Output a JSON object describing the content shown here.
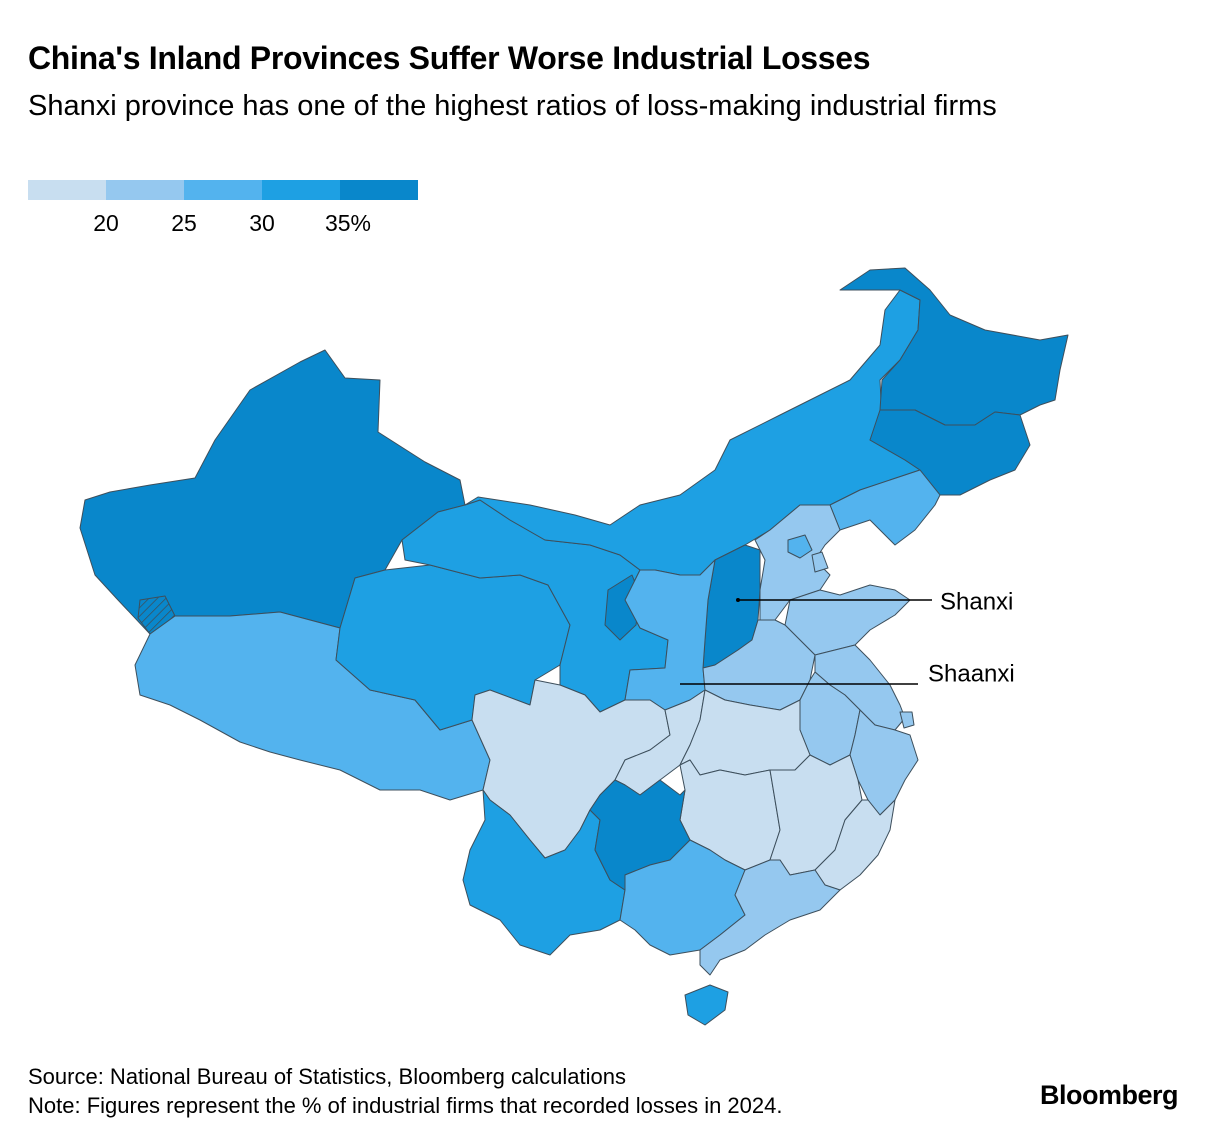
{
  "title": "China's Inland Provinces Suffer Worse Industrial Losses",
  "subtitle": "Shanxi province has one of the highest ratios of loss-making industrial firms",
  "legend": {
    "colors": [
      "#c8def0",
      "#95c8ef",
      "#53b3ee",
      "#1ea0e3",
      "#0987cb"
    ],
    "ticks": [
      "20",
      "25",
      "30",
      "35%"
    ]
  },
  "annotations": [
    {
      "name": "Shanxi",
      "text": "Shanxi"
    },
    {
      "name": "Shaanxi",
      "text": "Shaanxi"
    }
  ],
  "footer": {
    "source": "Source: National Bureau of Statistics, Bloomberg calculations",
    "note": "Note: Figures represent the % of industrial firms that recorded losses in 2024."
  },
  "brand": "Bloomberg",
  "colors": {
    "border": "#3d4f5c",
    "leader_line": "#000000"
  },
  "chart_data": {
    "type": "choropleth",
    "unit": "%",
    "legend_bins": [
      [
        null,
        20
      ],
      [
        20,
        25
      ],
      [
        25,
        30
      ],
      [
        30,
        35
      ],
      [
        35,
        null
      ]
    ],
    "regions": [
      {
        "name": "Xinjiang",
        "bin": 5
      },
      {
        "name": "Tibet",
        "bin": 3
      },
      {
        "name": "Qinghai",
        "bin": 4
      },
      {
        "name": "Gansu",
        "bin": 4
      },
      {
        "name": "Ningxia",
        "bin": 5
      },
      {
        "name": "Inner Mongolia",
        "bin": 4
      },
      {
        "name": "Heilongjiang",
        "bin": 5
      },
      {
        "name": "Jilin",
        "bin": 5
      },
      {
        "name": "Liaoning",
        "bin": 3
      },
      {
        "name": "Hebei",
        "bin": 2
      },
      {
        "name": "Beijing",
        "bin": 3
      },
      {
        "name": "Tianjin",
        "bin": 2
      },
      {
        "name": "Shanxi",
        "bin": 5
      },
      {
        "name": "Shaanxi",
        "bin": 3
      },
      {
        "name": "Shandong",
        "bin": 2
      },
      {
        "name": "Henan",
        "bin": 2
      },
      {
        "name": "Jiangsu",
        "bin": 2
      },
      {
        "name": "Anhui",
        "bin": 2
      },
      {
        "name": "Shanghai",
        "bin": 2
      },
      {
        "name": "Zhejiang",
        "bin": 2
      },
      {
        "name": "Sichuan",
        "bin": 1
      },
      {
        "name": "Chongqing",
        "bin": 1
      },
      {
        "name": "Hubei",
        "bin": 1
      },
      {
        "name": "Hunan",
        "bin": 1
      },
      {
        "name": "Jiangxi",
        "bin": 1
      },
      {
        "name": "Fujian",
        "bin": 1
      },
      {
        "name": "Yunnan",
        "bin": 4
      },
      {
        "name": "Guizhou",
        "bin": 5
      },
      {
        "name": "Guangxi",
        "bin": 3
      },
      {
        "name": "Guangdong",
        "bin": 2
      },
      {
        "name": "Hainan",
        "bin": 4
      }
    ]
  }
}
